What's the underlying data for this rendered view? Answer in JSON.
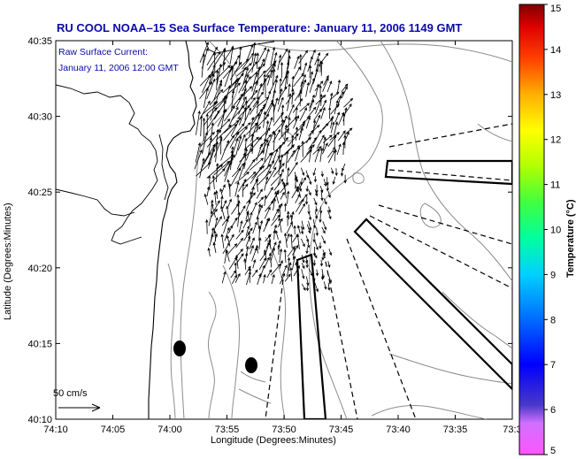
{
  "title": "RU COOL  NOAA–15  Sea Surface Temperature:  January 11, 2006 1149 GMT",
  "current_info": {
    "line1": "Raw Surface Current:",
    "line2": "January 11, 2006 12:00 GMT"
  },
  "scale_label": "50 cm/s",
  "axes": {
    "xlabel": "Longitude (Degrees:Minutes)",
    "ylabel": "Latitude (Degrees:Minutes)",
    "x_ticks": [
      "74:10",
      "74:05",
      "74:00",
      "73:55",
      "73:50",
      "73:45",
      "73:40",
      "73:35",
      "73:3"
    ],
    "y_ticks": [
      "40:35",
      "40:30",
      "40:25",
      "40:20",
      "40:15",
      "40:10"
    ]
  },
  "colorbar": {
    "label": "Temperature (°C)",
    "ticks": [
      "15",
      "14",
      "13",
      "12",
      "11",
      "10",
      "9",
      "8",
      "7",
      "6",
      "5"
    ],
    "range": [
      5,
      15
    ]
  },
  "colors": {
    "title": "#0a0aa8",
    "land": "#ffffff",
    "contour": "#8c8c8c",
    "arrow": "#000000"
  }
}
